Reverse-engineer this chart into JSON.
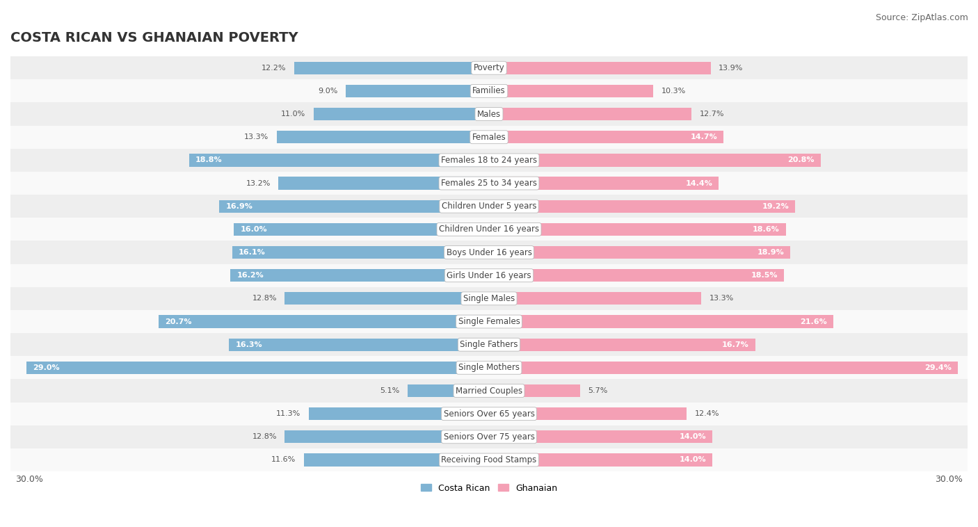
{
  "title": "COSTA RICAN VS GHANAIAN POVERTY",
  "source": "Source: ZipAtlas.com",
  "categories": [
    "Poverty",
    "Families",
    "Males",
    "Females",
    "Females 18 to 24 years",
    "Females 25 to 34 years",
    "Children Under 5 years",
    "Children Under 16 years",
    "Boys Under 16 years",
    "Girls Under 16 years",
    "Single Males",
    "Single Females",
    "Single Fathers",
    "Single Mothers",
    "Married Couples",
    "Seniors Over 65 years",
    "Seniors Over 75 years",
    "Receiving Food Stamps"
  ],
  "costa_rican": [
    12.2,
    9.0,
    11.0,
    13.3,
    18.8,
    13.2,
    16.9,
    16.0,
    16.1,
    16.2,
    12.8,
    20.7,
    16.3,
    29.0,
    5.1,
    11.3,
    12.8,
    11.6
  ],
  "ghanaian": [
    13.9,
    10.3,
    12.7,
    14.7,
    20.8,
    14.4,
    19.2,
    18.6,
    18.9,
    18.5,
    13.3,
    21.6,
    16.7,
    29.4,
    5.7,
    12.4,
    14.0,
    14.0
  ],
  "costa_rican_color": "#7fb3d3",
  "ghanaian_color": "#f4a0b5",
  "row_bg_even": "#eeeeee",
  "row_bg_odd": "#f9f9f9",
  "axis_max": 30.0,
  "legend_label_cr": "Costa Rican",
  "legend_label_gh": "Ghanaian",
  "title_fontsize": 14,
  "source_fontsize": 9,
  "label_fontsize": 8.5,
  "value_fontsize": 8.0,
  "axis_label_fontsize": 9
}
